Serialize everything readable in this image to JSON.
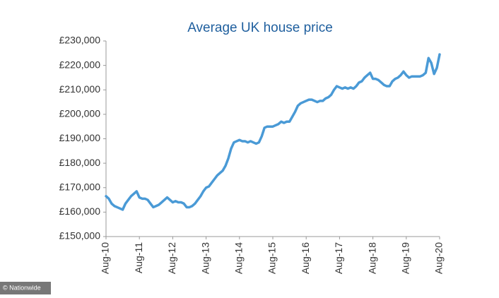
{
  "chart_data": {
    "type": "line",
    "title": "Average UK house price",
    "source": "© Nationwide",
    "categories": [
      "Aug-10",
      null,
      null,
      null,
      null,
      null,
      null,
      null,
      null,
      null,
      null,
      null,
      "Aug-11",
      null,
      null,
      null,
      null,
      null,
      null,
      null,
      null,
      null,
      null,
      null,
      "Aug-12",
      null,
      null,
      null,
      null,
      null,
      null,
      null,
      null,
      null,
      null,
      null,
      "Aug-13",
      null,
      null,
      null,
      null,
      null,
      null,
      null,
      null,
      null,
      null,
      null,
      "Aug-14",
      null,
      null,
      null,
      null,
      null,
      null,
      null,
      null,
      null,
      null,
      null,
      "Aug-15",
      null,
      null,
      null,
      null,
      null,
      null,
      null,
      null,
      null,
      null,
      null,
      "Aug-16",
      null,
      null,
      null,
      null,
      null,
      null,
      null,
      null,
      null,
      null,
      null,
      "Aug-17",
      null,
      null,
      null,
      null,
      null,
      null,
      null,
      null,
      null,
      null,
      null,
      "Aug-18",
      null,
      null,
      null,
      null,
      null,
      null,
      null,
      null,
      null,
      null,
      null,
      "Aug-19",
      null,
      null,
      null,
      null,
      null,
      null,
      null,
      null,
      null,
      null,
      null,
      "Aug-20"
    ],
    "series": [
      {
        "name": "Average UK house price",
        "color": "#4a9ad6",
        "values": [
          166500,
          165500,
          163500,
          162500,
          162000,
          161500,
          161000,
          163500,
          165000,
          166500,
          167500,
          168500,
          166000,
          165500,
          165500,
          165000,
          163500,
          162000,
          162500,
          163000,
          164000,
          165000,
          166000,
          165000,
          164000,
          164500,
          164000,
          164000,
          163500,
          162000,
          162000,
          162500,
          163500,
          165000,
          166500,
          168500,
          170000,
          170500,
          172000,
          173500,
          175000,
          176000,
          177000,
          179000,
          182000,
          186000,
          188500,
          189000,
          189500,
          189000,
          189000,
          188500,
          189000,
          188500,
          188000,
          188500,
          191000,
          194500,
          195000,
          195000,
          195000,
          195500,
          196000,
          197000,
          196500,
          197000,
          197000,
          199000,
          201000,
          203500,
          204500,
          205000,
          205500,
          206000,
          206000,
          205500,
          205000,
          205500,
          205500,
          206500,
          207000,
          208000,
          210000,
          211500,
          211000,
          210500,
          211000,
          210500,
          211000,
          210500,
          211500,
          213000,
          213500,
          215000,
          216000,
          217000,
          214500,
          214500,
          214000,
          213000,
          212000,
          211500,
          211500,
          213500,
          214500,
          215000,
          216000,
          217500,
          216000,
          215000,
          215500,
          215500,
          215500,
          215500,
          216000,
          217000,
          223000,
          221000,
          216500,
          219000,
          224500
        ]
      }
    ],
    "ylim": [
      150000,
      230000
    ],
    "yticks": [
      {
        "value": 150000,
        "label": "£150,000"
      },
      {
        "value": 160000,
        "label": "£160,000"
      },
      {
        "value": 170000,
        "label": "£170,000"
      },
      {
        "value": 180000,
        "label": "£180,000"
      },
      {
        "value": 190000,
        "label": "£190,000"
      },
      {
        "value": 200000,
        "label": "£200,000"
      },
      {
        "value": 210000,
        "label": "£210,000"
      },
      {
        "value": 220000,
        "label": "£220,000"
      },
      {
        "value": 230000,
        "label": "£230,000"
      }
    ],
    "grid": false
  }
}
